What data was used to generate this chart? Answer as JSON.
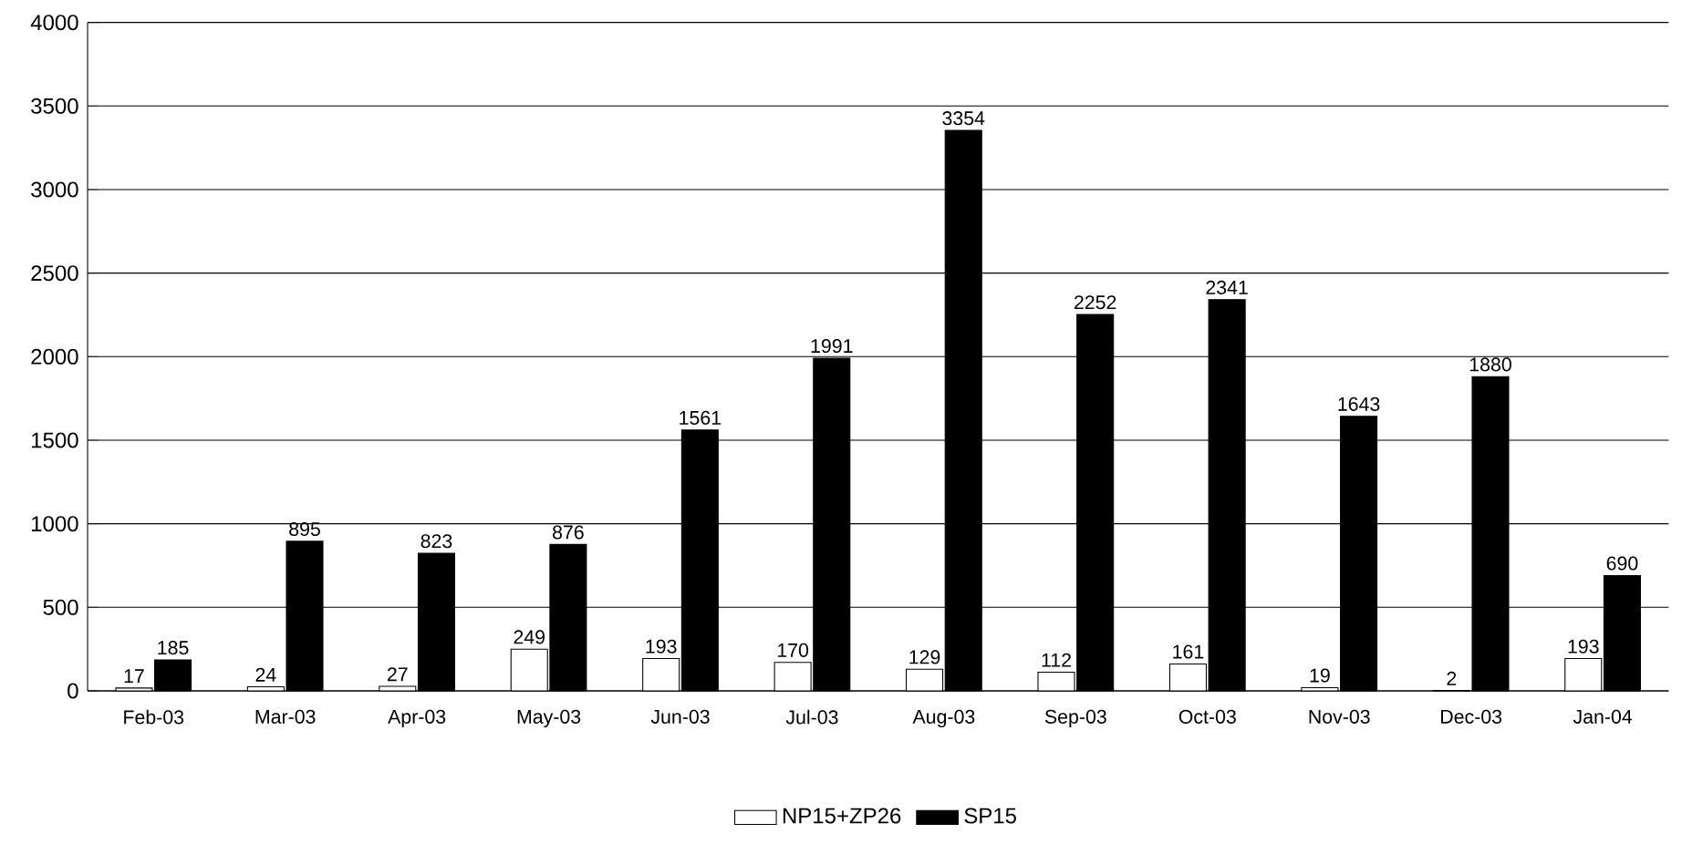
{
  "chart_data": {
    "type": "bar",
    "categories": [
      "Feb-03",
      "Mar-03",
      "Apr-03",
      "May-03",
      "Jun-03",
      "Jul-03",
      "Aug-03",
      "Sep-03",
      "Oct-03",
      "Nov-03",
      "Dec-03",
      "Jan-04"
    ],
    "series": [
      {
        "name": "NP15+ZP26",
        "color": "#ffffff",
        "values": [
          17,
          24,
          27,
          249,
          193,
          170,
          129,
          112,
          161,
          19,
          2,
          193
        ]
      },
      {
        "name": "SP15",
        "color": "#000000",
        "values": [
          185,
          895,
          823,
          876,
          1561,
          1991,
          3354,
          2252,
          2341,
          1643,
          1880,
          690
        ]
      }
    ],
    "ylim": [
      0,
      4000
    ],
    "yticks": [
      0,
      500,
      1000,
      1500,
      2000,
      2500,
      3000,
      3500,
      4000
    ],
    "grid": "y",
    "legend": "bottom",
    "data_labels": true
  }
}
